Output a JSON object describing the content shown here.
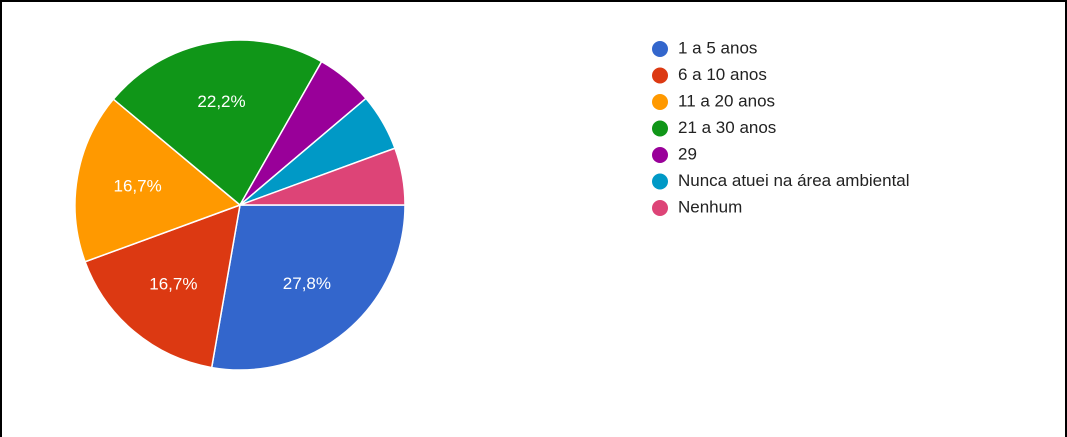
{
  "chart_data": {
    "type": "pie",
    "categories": [
      "1 a 5 anos",
      "6 a 10 anos",
      "11 a 20 anos",
      "21 a 30 anos",
      "29",
      "Nunca atuei na área ambiental",
      "Nenhum"
    ],
    "values": [
      27.8,
      16.7,
      16.7,
      22.2,
      5.6,
      5.6,
      5.6
    ],
    "value_labels": [
      "27,8%",
      "16,7%",
      "16,7%",
      "22,2%",
      null,
      null,
      null
    ],
    "colors": [
      "#3366cc",
      "#dc3912",
      "#ff9900",
      "#109618",
      "#990099",
      "#0099c6",
      "#dd4477"
    ],
    "legend": "right"
  }
}
